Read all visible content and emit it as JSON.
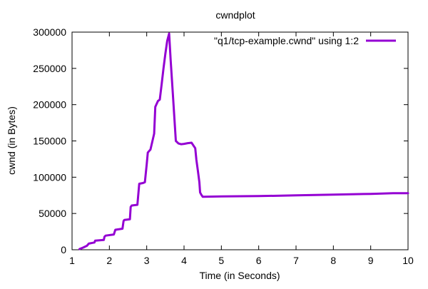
{
  "chart_data": {
    "type": "line",
    "title": "cwndplot",
    "xlabel": "Time (in Seconds)",
    "ylabel": "cwnd (in Bytes)",
    "xlim": [
      1,
      10
    ],
    "ylim": [
      0,
      300000
    ],
    "xticks": [
      1,
      2,
      3,
      4,
      5,
      6,
      7,
      8,
      9,
      10
    ],
    "yticks": [
      0,
      50000,
      100000,
      150000,
      200000,
      250000,
      300000
    ],
    "xtick_labels": [
      "1",
      "2",
      "3",
      "4",
      "5",
      "6",
      "7",
      "8",
      "9",
      "10"
    ],
    "ytick_labels": [
      "0",
      "50000",
      "100000",
      "150000",
      "200000",
      "250000",
      "300000"
    ],
    "grid": false,
    "legend_position": "top-right",
    "series": [
      {
        "name": "\"q1/tcp-example.cwnd\" using 1:2",
        "color": "#9400d3",
        "x": [
          1.2,
          1.3,
          1.4,
          1.45,
          1.6,
          1.62,
          1.85,
          1.87,
          1.9,
          2.12,
          2.16,
          2.35,
          2.38,
          2.4,
          2.55,
          2.57,
          2.6,
          2.75,
          2.78,
          2.8,
          2.9,
          2.95,
          3.0,
          3.03,
          3.08,
          3.1,
          3.2,
          3.23,
          3.3,
          3.35,
          3.4,
          3.45,
          3.5,
          3.55,
          3.6,
          3.64,
          3.7,
          3.78,
          3.85,
          3.92,
          4.0,
          4.05,
          4.1,
          4.2,
          4.3,
          4.33,
          4.37,
          4.41,
          4.43,
          4.46,
          4.5,
          5.0,
          6.0,
          7.0,
          8.0,
          9.0,
          9.6,
          10.0
        ],
        "y": [
          1000,
          3000,
          5500,
          8500,
          10000,
          12500,
          13500,
          18000,
          19500,
          21000,
          27500,
          29000,
          39500,
          41000,
          42000,
          59000,
          61000,
          62000,
          80000,
          91000,
          92000,
          93000,
          118000,
          134000,
          137000,
          138000,
          160000,
          197000,
          205000,
          207000,
          228000,
          250000,
          270000,
          288000,
          298000,
          262000,
          215000,
          150000,
          146500,
          145500,
          146000,
          146500,
          147000,
          147500,
          140000,
          124000,
          109000,
          93000,
          79000,
          76000,
          73000,
          73500,
          74000,
          75000,
          76000,
          77000,
          78000,
          78000
        ]
      }
    ]
  }
}
